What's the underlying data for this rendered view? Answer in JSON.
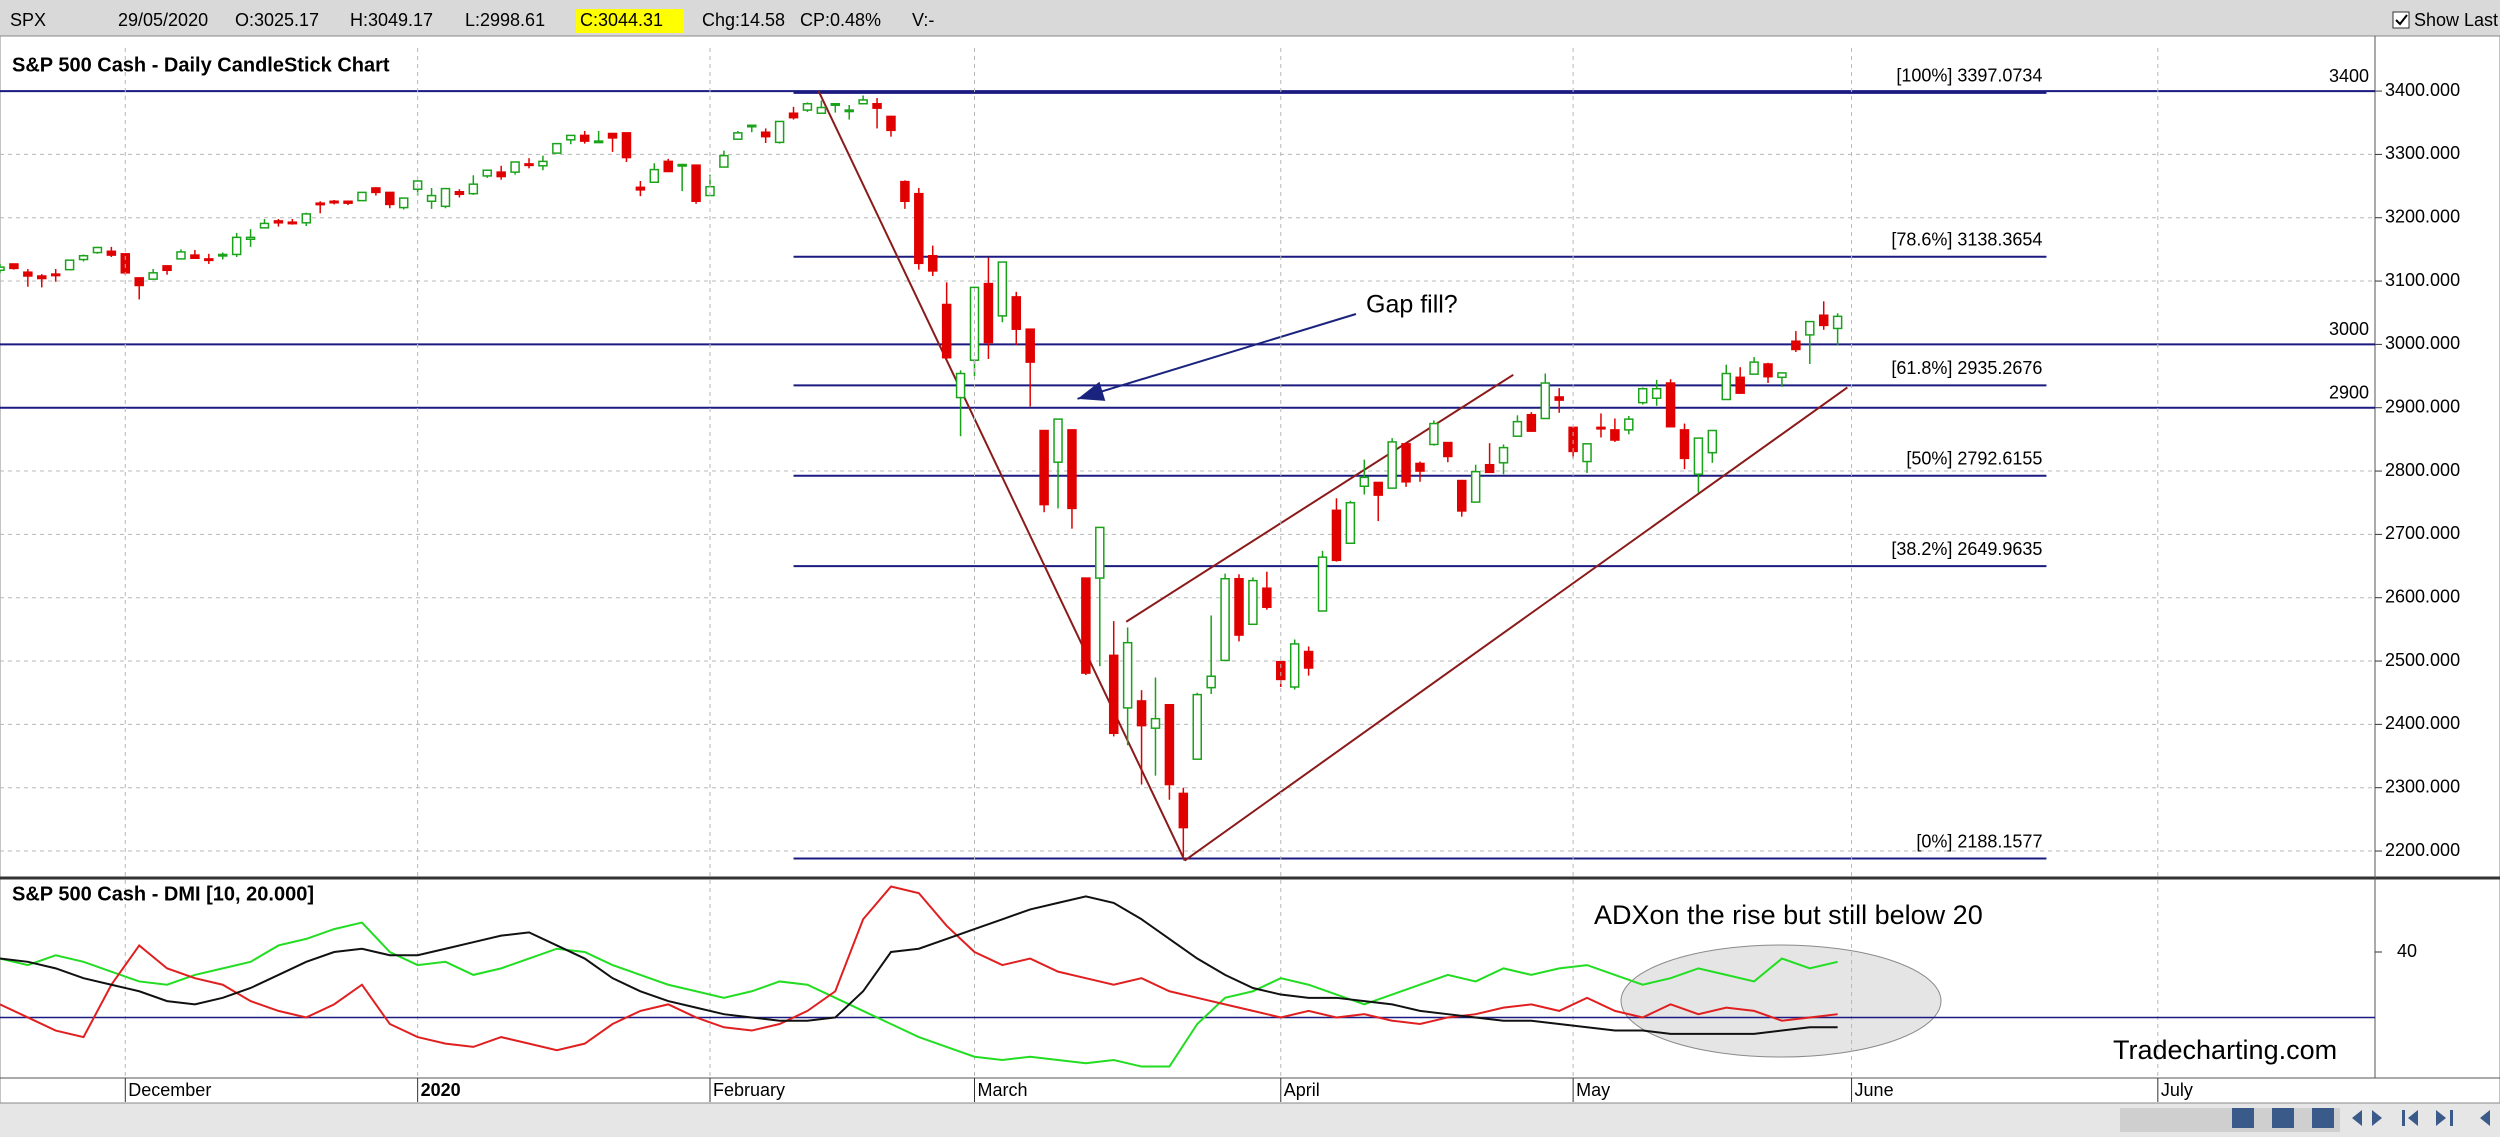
{
  "header": {
    "symbol": "SPX",
    "date": "29/05/2020",
    "fields": [
      "O:3025.17",
      "H:3049.17",
      "L:2998.61",
      "C:3044.31",
      "Chg:14.58",
      "CP:0.48%",
      "V:-"
    ],
    "highlight": 3,
    "show_last": "Show Last"
  },
  "chart_data": [
    {
      "type": "candlestick",
      "title": "S&P 500 Cash - Daily CandleStick Chart",
      "xlim": [
        0,
        170.6
      ],
      "ylim": [
        2159,
        3468
      ],
      "yticks": [
        {
          "value": 2200,
          "label": "2200.000"
        },
        {
          "value": 2300,
          "label": "2300.000"
        },
        {
          "value": 2400,
          "label": "2400.000"
        },
        {
          "value": 2500,
          "label": "2500.000"
        },
        {
          "value": 2600,
          "label": "2600.000"
        },
        {
          "value": 2700,
          "label": "2700.000"
        },
        {
          "value": 2800,
          "label": "2800.000"
        },
        {
          "value": 2900,
          "label": "2900.000"
        },
        {
          "value": 3000,
          "label": "3000.000"
        },
        {
          "value": 3100,
          "label": "3100.000"
        },
        {
          "value": 3200,
          "label": "3200.000"
        },
        {
          "value": 3300,
          "label": "3300.000"
        },
        {
          "value": 3400,
          "label": "3400.000"
        }
      ],
      "grid": true,
      "up_color": "#1aa31a",
      "down_color": "#e00000",
      "open": [
        3117,
        3127,
        3114,
        3108,
        3111,
        3118,
        3134,
        3145,
        3147,
        3143,
        3105,
        3103,
        3124,
        3135,
        3141,
        3135,
        3141,
        3142,
        3166,
        3184,
        3195,
        3193,
        3192,
        3223,
        3226,
        3226,
        3227,
        3247,
        3240,
        3216,
        3245,
        3226,
        3218,
        3241,
        3238,
        3266,
        3272,
        3272,
        3285,
        3282,
        3302,
        3323,
        3330,
        3321,
        3333,
        3334,
        3248,
        3256,
        3289,
        3283,
        3283,
        3235,
        3280,
        3324,
        3344,
        3335,
        3319,
        3365,
        3370,
        3365,
        3379,
        3369,
        3380,
        3380,
        3360,
        3257,
        3238,
        3140,
        3063,
        2916,
        2975,
        3096,
        3045,
        3075,
        3024,
        2864,
        2814,
        2865,
        2631,
        2631,
        2509,
        2426,
        2437,
        2394,
        2431,
        2291,
        2345,
        2458,
        2501,
        2630,
        2558,
        2615,
        2499,
        2459,
        2515,
        2579,
        2738,
        2686,
        2776,
        2782,
        2773,
        2843,
        2812,
        2842,
        2845,
        2785,
        2751,
        2810,
        2813,
        2855,
        2889,
        2883,
        2917,
        2869,
        2815,
        2869,
        2865,
        2865,
        2908,
        2915,
        2939,
        2865,
        2795,
        2829,
        2913,
        2948,
        2953,
        2969,
        2948,
        3005,
        3015,
        3046,
        3025.17
      ],
      "high": [
        3127,
        3127,
        3119,
        3111,
        3119,
        3134,
        3142,
        3154,
        3154,
        3144,
        3105,
        3119,
        3124,
        3150,
        3149,
        3143,
        3145,
        3176,
        3182,
        3198,
        3198,
        3198,
        3208,
        3226,
        3228,
        3227,
        3240,
        3248,
        3240,
        3232,
        3259,
        3247,
        3247,
        3245,
        3267,
        3275,
        3282,
        3288,
        3294,
        3298,
        3317,
        3330,
        3337,
        3337,
        3334,
        3334,
        3258,
        3286,
        3293,
        3285,
        3283,
        3268,
        3306,
        3337,
        3347,
        3341,
        3352,
        3375,
        3382,
        3385,
        3380,
        3378,
        3393,
        3389,
        3360,
        3259,
        3247,
        3156,
        3098,
        2959,
        3091,
        3137,
        3130,
        3083,
        3024,
        2864,
        2883,
        2866,
        2631,
        2711,
        2563,
        2553,
        2454,
        2474,
        2431,
        2300,
        2450,
        2572,
        2638,
        2637,
        2632,
        2641,
        2499,
        2534,
        2523,
        2674,
        2757,
        2753,
        2818,
        2782,
        2852,
        2845,
        2815,
        2880,
        2845,
        2786,
        2810,
        2844,
        2842,
        2888,
        2893,
        2954,
        2931,
        2869,
        2843,
        2891,
        2883,
        2887,
        2932,
        2944,
        2945,
        2875,
        2853,
        2865,
        2968,
        2964,
        2980,
        2971,
        2956,
        3021,
        3036,
        3068,
        3049.17
      ],
      "low": [
        3113,
        3118,
        3091,
        3090,
        3099,
        3117,
        3131,
        3143,
        3138,
        3110,
        3071,
        3103,
        3110,
        3134,
        3135,
        3127,
        3134,
        3138,
        3154,
        3184,
        3186,
        3189,
        3187,
        3207,
        3221,
        3220,
        3227,
        3235,
        3215,
        3213,
        3235,
        3214,
        3215,
        3232,
        3236,
        3263,
        3260,
        3268,
        3278,
        3275,
        3302,
        3316,
        3317,
        3319,
        3304,
        3288,
        3234,
        3256,
        3272,
        3242,
        3222,
        3235,
        3280,
        3324,
        3335,
        3318,
        3317,
        3355,
        3367,
        3364,
        3366,
        3355,
        3379,
        3341,
        3328,
        3214,
        3118,
        3108,
        2977,
        2855,
        2950,
        2977,
        3035,
        2999,
        2902,
        2735,
        2741,
        2709,
        2478,
        2492,
        2381,
        2367,
        2305,
        2319,
        2281,
        2192,
        2345,
        2448,
        2501,
        2531,
        2558,
        2581,
        2459,
        2455,
        2477,
        2579,
        2657,
        2686,
        2763,
        2721,
        2773,
        2775,
        2783,
        2840,
        2814,
        2728,
        2751,
        2797,
        2795,
        2855,
        2862,
        2883,
        2892,
        2821,
        2797,
        2853,
        2846,
        2858,
        2905,
        2903,
        2870,
        2803,
        2766,
        2813,
        2913,
        2922,
        2953,
        2939,
        2933,
        2988,
        2969,
        3023,
        2998.61
      ],
      "close": [
        3122,
        3120,
        3108,
        3104,
        3110,
        3133,
        3140,
        3153,
        3141,
        3113,
        3093,
        3113,
        3117,
        3146,
        3136,
        3133,
        3142,
        3169,
        3169,
        3191,
        3192,
        3191,
        3206,
        3221,
        3224,
        3223,
        3240,
        3240,
        3221,
        3231,
        3258,
        3235,
        3246,
        3237,
        3253,
        3275,
        3265,
        3288,
        3283,
        3289,
        3317,
        3330,
        3321,
        3321,
        3326,
        3295,
        3244,
        3276,
        3273,
        3284,
        3226,
        3249,
        3298,
        3334,
        3346,
        3328,
        3352,
        3358,
        3380,
        3374,
        3380,
        3370,
        3386,
        3373,
        3338,
        3226,
        3128,
        3116,
        2979,
        2954,
        3090,
        3003,
        3130,
        3024,
        2972,
        2747,
        2882,
        2741,
        2481,
        2711,
        2386,
        2529,
        2398,
        2409,
        2305,
        2237,
        2447,
        2476,
        2630,
        2541,
        2627,
        2585,
        2471,
        2527,
        2489,
        2664,
        2659,
        2750,
        2790,
        2762,
        2846,
        2783,
        2800,
        2875,
        2823,
        2737,
        2799,
        2798,
        2837,
        2878,
        2863,
        2939,
        2912,
        2831,
        2843,
        2868,
        2849,
        2882,
        2930,
        2930,
        2870,
        2820,
        2852,
        2864,
        2954,
        2923,
        2972,
        2949,
        2955,
        2992,
        3036,
        3030,
        3044.31
      ],
      "horizontal_lines": [
        3400,
        3000,
        2900
      ],
      "level_color": "#1a1a80",
      "fib_range": [
        57,
        147
      ],
      "fib_levels": [
        {
          "value": 3397.0734,
          "label": "[100%] 3397.0734"
        },
        {
          "value": 3138.3654,
          "label": "[78.6%] 3138.3654"
        },
        {
          "value": 2935.2676,
          "label": "[61.8%] 2935.2676"
        },
        {
          "value": 2792.6155,
          "label": "[50%] 2792.6155"
        },
        {
          "value": 2649.9635,
          "label": "[38.2%] 2649.9635"
        },
        {
          "value": 2188.1577,
          "label": "[0%] 2188.1577"
        }
      ],
      "trend_lines": [
        {
          "color": "#8b1a1a",
          "x": [
            58.8,
            85.1
          ],
          "y": [
            3400,
            2185
          ]
        },
        {
          "color": "#8b1a1a",
          "x": [
            85.1,
            132.7
          ],
          "y": [
            2185,
            2932
          ]
        },
        {
          "color": "#8b1a1a",
          "x": [
            80.9,
            108.7
          ],
          "y": [
            2562,
            2952
          ]
        }
      ],
      "arrow": {
        "color": "#1a237e",
        "x": [
          97.4,
          77.4
        ],
        "y": [
          3048,
          2914
        ]
      },
      "annotation": "Gap fill?"
    },
    {
      "type": "line",
      "title": "S&P 500 Cash - DMI [10, 20.000]",
      "xlim": [
        0,
        170.6
      ],
      "ylim": [
        1.5,
        62
      ],
      "yticks": [
        40
      ],
      "reference_line": 20,
      "xticks": [
        {
          "value": 9,
          "label": "December"
        },
        {
          "value": 30,
          "label": "2020",
          "bold": true
        },
        {
          "value": 51,
          "label": "February"
        },
        {
          "value": 70,
          "label": "March"
        },
        {
          "value": 92,
          "label": "April"
        },
        {
          "value": 113,
          "label": "May"
        },
        {
          "value": 133,
          "label": "June"
        },
        {
          "value": 155,
          "label": "July"
        }
      ],
      "x": [
        0,
        2,
        4,
        6,
        8,
        10,
        12,
        14,
        16,
        18,
        20,
        22,
        24,
        26,
        28,
        30,
        32,
        34,
        36,
        38,
        40,
        42,
        44,
        46,
        48,
        50,
        52,
        54,
        56,
        58,
        60,
        62,
        64,
        66,
        68,
        70,
        72,
        74,
        76,
        78,
        80,
        82,
        84,
        86,
        88,
        90,
        92,
        94,
        96,
        98,
        100,
        102,
        104,
        106,
        108,
        110,
        112,
        114,
        116,
        118,
        120,
        122,
        124,
        126,
        128,
        130,
        132
      ],
      "series": [
        {
          "color": "#22dd22",
          "values": [
            38,
            36,
            39,
            37,
            34,
            31,
            30,
            33,
            35,
            37,
            42,
            44,
            47,
            49,
            40,
            36,
            37,
            33,
            35,
            38,
            41,
            40,
            36,
            33,
            30,
            28,
            26,
            28,
            31,
            30,
            26,
            22,
            18,
            14,
            11,
            8,
            7,
            8,
            7,
            6,
            7,
            5,
            5,
            18,
            26,
            28,
            32,
            30,
            27,
            24,
            27,
            30,
            33,
            31,
            35,
            33,
            35,
            36,
            33,
            30,
            32,
            35,
            33,
            31,
            38,
            35,
            37
          ]
        },
        {
          "color": "#e02020",
          "values": [
            24,
            20,
            16,
            14,
            30,
            42,
            35,
            32,
            30,
            25,
            22,
            20,
            24,
            30,
            18,
            14,
            12,
            11,
            14,
            12,
            10,
            12,
            18,
            22,
            24,
            20,
            17,
            16,
            18,
            22,
            28,
            50,
            60,
            58,
            48,
            40,
            36,
            38,
            34,
            32,
            30,
            32,
            28,
            26,
            24,
            22,
            20,
            22,
            20,
            21,
            19,
            18,
            20,
            21,
            23,
            24,
            22,
            26,
            22,
            20,
            24,
            21,
            23,
            22,
            19,
            20,
            21
          ]
        },
        {
          "color": "#111111",
          "values": [
            38,
            37,
            35,
            32,
            30,
            28,
            25,
            24,
            26,
            29,
            33,
            37,
            40,
            41,
            39,
            39,
            41,
            43,
            45,
            46,
            42,
            38,
            32,
            28,
            25,
            23,
            21,
            20,
            19,
            19,
            20,
            28,
            40,
            41,
            44,
            47,
            50,
            53,
            55,
            57,
            55,
            50,
            44,
            38,
            33,
            29,
            27,
            26,
            26,
            25,
            24,
            22,
            21,
            20,
            19,
            19,
            18,
            17,
            16,
            16,
            15,
            15,
            15,
            15,
            16,
            17,
            17
          ]
        }
      ],
      "annotation": "ADXon the rise but still below 20",
      "watermark": "Tradecharting.com"
    }
  ]
}
